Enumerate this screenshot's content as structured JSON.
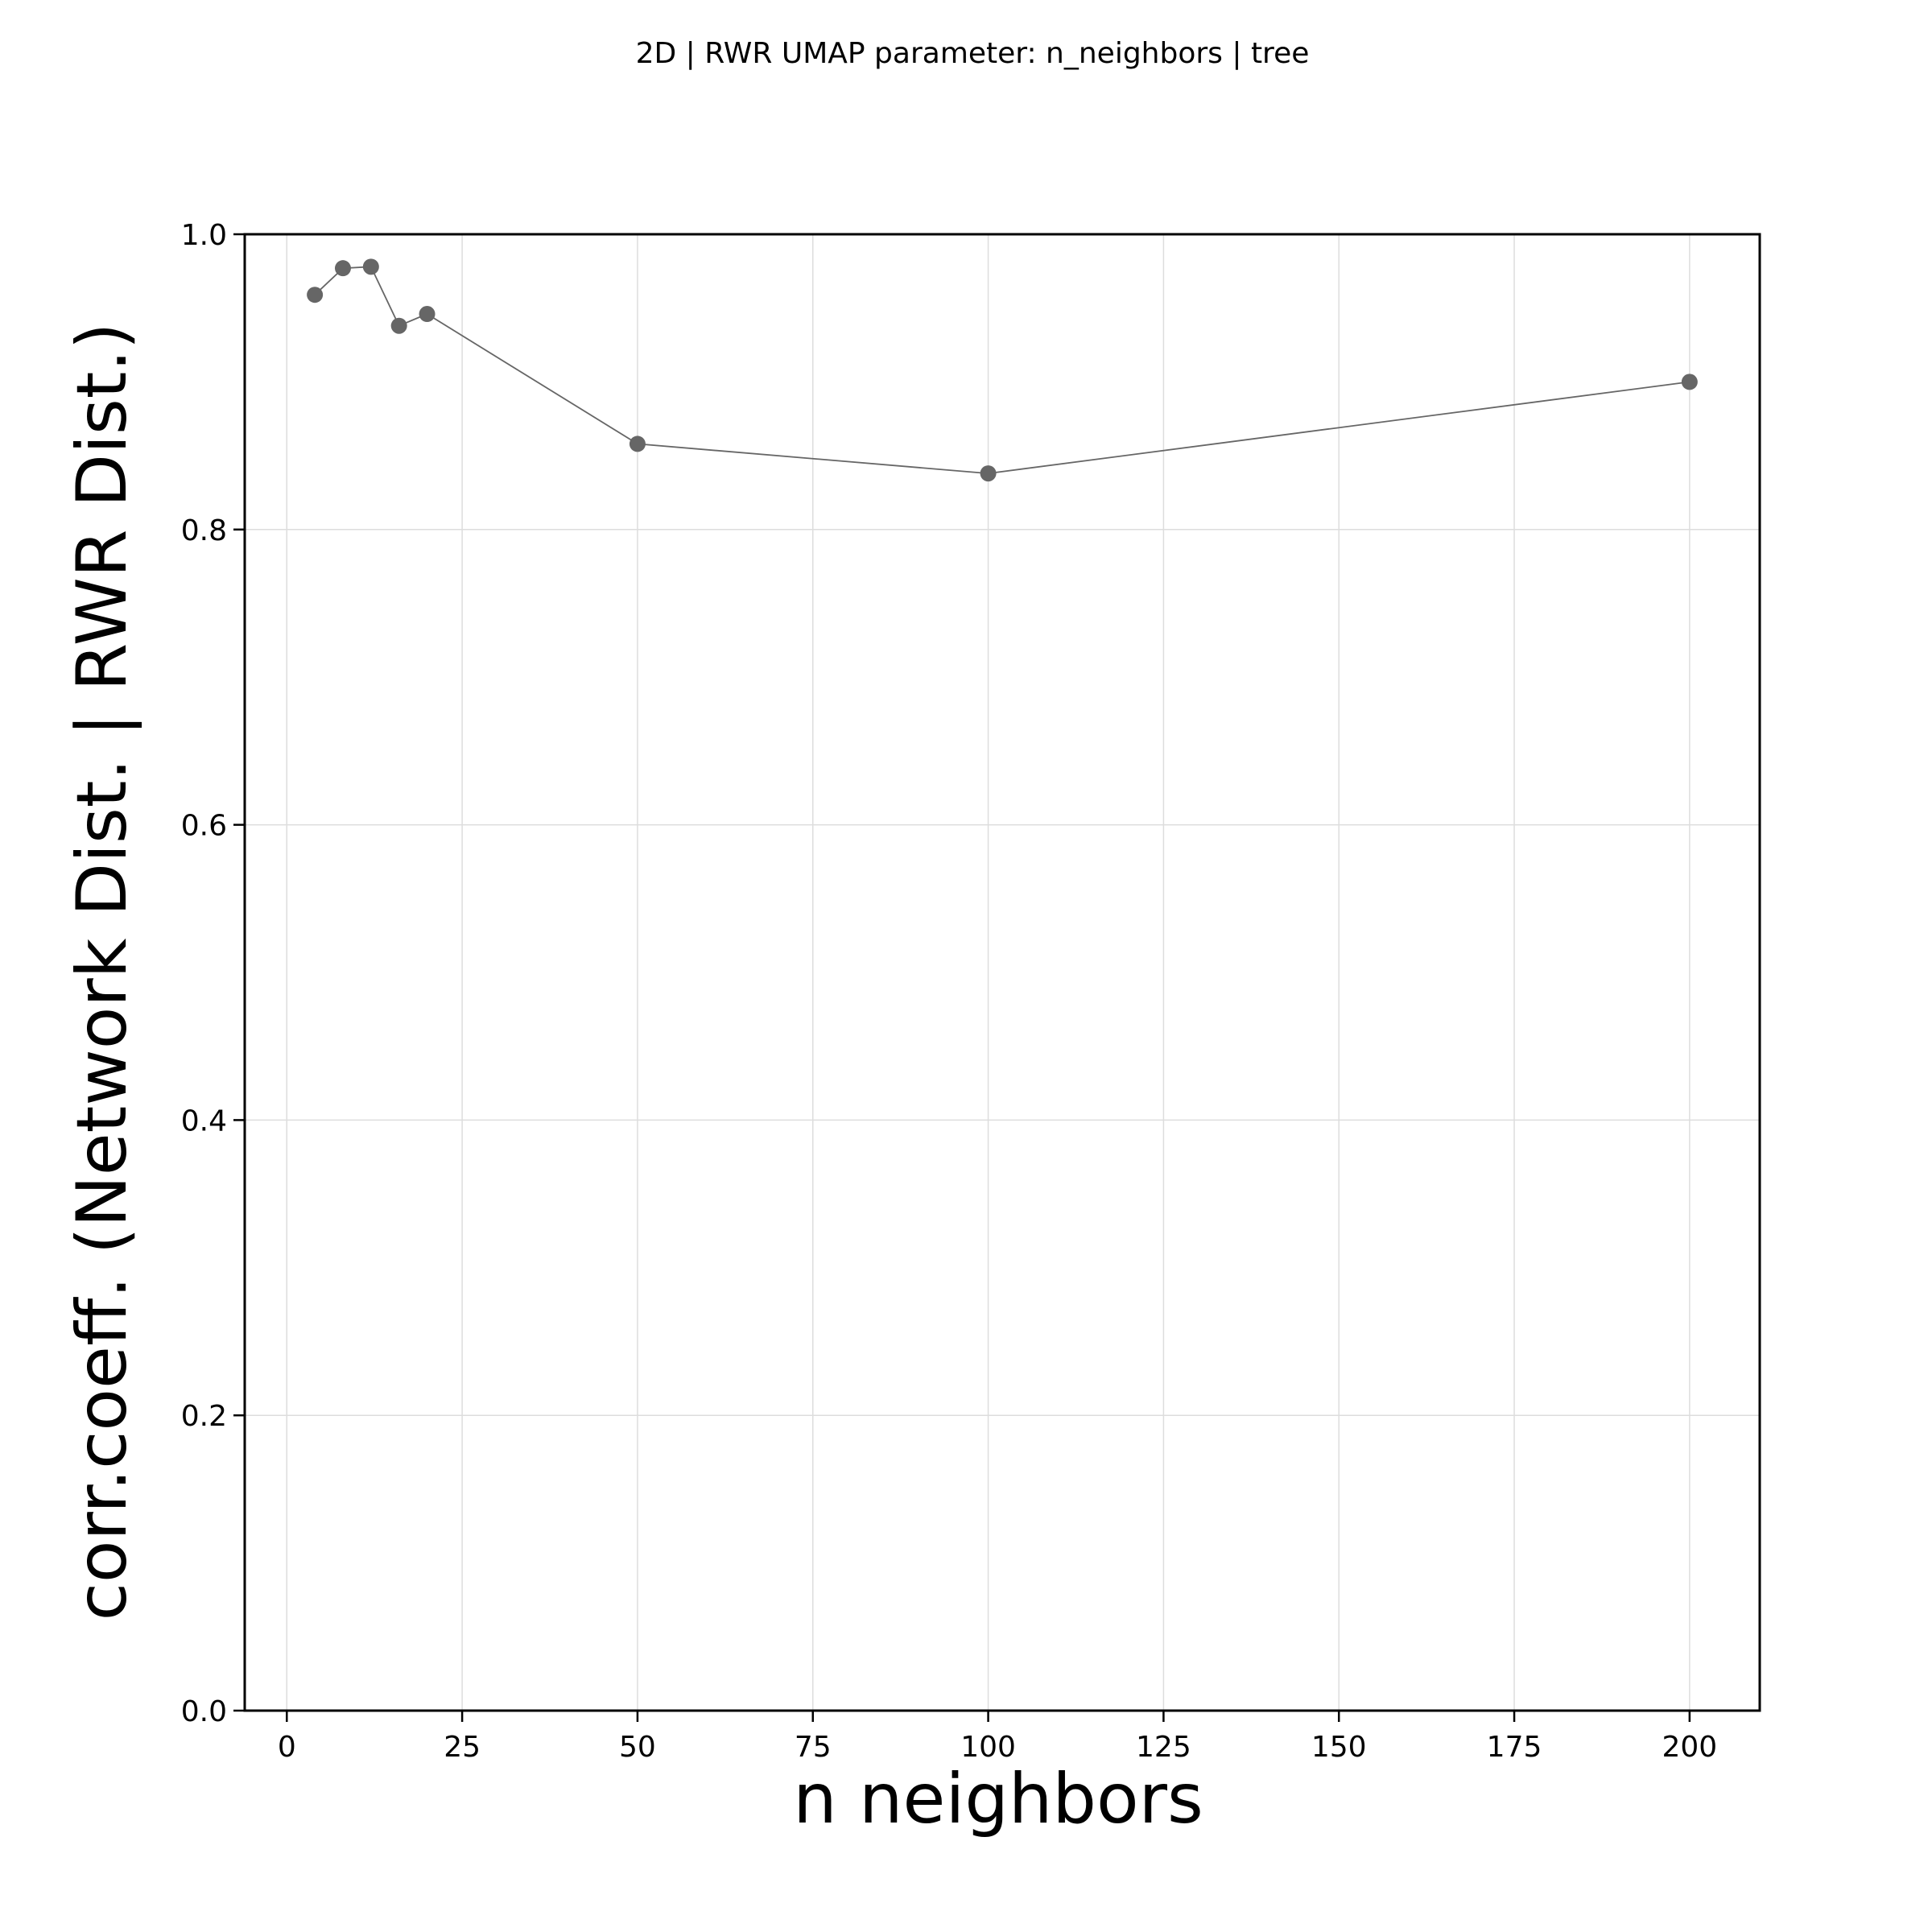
{
  "colors": {
    "series": "#666666",
    "grid": "#dddddd",
    "axis": "#000000"
  },
  "chart_data": {
    "type": "line",
    "title": "2D | RWR UMAP parameter: n_neighbors | tree",
    "xlabel": "n neighbors",
    "ylabel": "corr.coeff. (Network Dist. | RWR Dist.)",
    "xlim": [
      -6,
      210
    ],
    "ylim": [
      0.0,
      1.0
    ],
    "xticks": [
      0,
      25,
      50,
      75,
      100,
      125,
      150,
      175,
      200
    ],
    "yticks": [
      0.0,
      0.2,
      0.4,
      0.6,
      0.8,
      1.0
    ],
    "xtick_labels": [
      "0",
      "25",
      "50",
      "75",
      "100",
      "125",
      "150",
      "175",
      "200"
    ],
    "ytick_labels": [
      "0.0",
      "0.2",
      "0.4",
      "0.6",
      "0.8",
      "1.0"
    ],
    "grid": true,
    "series": [
      {
        "x": [
          4,
          8,
          12,
          16,
          20,
          50,
          100,
          200
        ],
        "y": [
          0.959,
          0.977,
          0.978,
          0.938,
          0.946,
          0.858,
          0.838,
          0.9
        ]
      }
    ]
  }
}
